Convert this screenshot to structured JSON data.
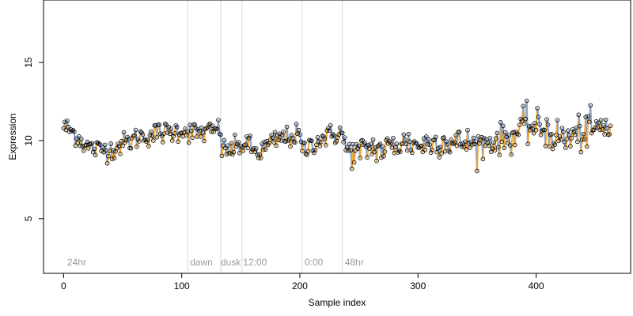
{
  "chart_data": {
    "type": "scatter",
    "title": "",
    "xlabel": "Sample index",
    "ylabel": "Expression",
    "xlim": [
      -17,
      480
    ],
    "ylim": [
      1.5,
      19
    ],
    "x_ticks": [
      0,
      100,
      200,
      300,
      400
    ],
    "y_ticks": [
      5,
      10,
      15
    ],
    "grid": false,
    "legend": "none",
    "colors": {
      "series_line_a": "#f5a623",
      "series_line_b": "#7b9fd8",
      "point_edge": "#000000",
      "vline": "#d9d9d9",
      "annotation": "#9a9a9a"
    },
    "vertical_lines": [
      105,
      133,
      151,
      202,
      236
    ],
    "annotations": [
      {
        "label": "24hr",
        "x": 3,
        "y": 2
      },
      {
        "label": "dawn",
        "x": 107,
        "y": 2
      },
      {
        "label": "dusk",
        "x": 133,
        "y": 2
      },
      {
        "label": "12:00",
        "x": 152,
        "y": 2
      },
      {
        "label": "0:00",
        "x": 204,
        "y": 2
      },
      {
        "label": "48hr",
        "x": 238,
        "y": 2
      }
    ],
    "anchors": [
      [
        0,
        10.9
      ],
      [
        5,
        10.7
      ],
      [
        10,
        10.4
      ],
      [
        15,
        10.0
      ],
      [
        20,
        9.6
      ],
      [
        25,
        9.5
      ],
      [
        30,
        9.4
      ],
      [
        35,
        9.5
      ],
      [
        40,
        9.4
      ],
      [
        45,
        9.6
      ],
      [
        50,
        9.8
      ],
      [
        55,
        9.9
      ],
      [
        60,
        10.1
      ],
      [
        65,
        10.3
      ],
      [
        70,
        10.3
      ],
      [
        75,
        10.4
      ],
      [
        80,
        10.5
      ],
      [
        85,
        10.5
      ],
      [
        90,
        10.5
      ],
      [
        95,
        10.6
      ],
      [
        100,
        10.7
      ],
      [
        105,
        10.6
      ],
      [
        110,
        10.5
      ],
      [
        115,
        10.5
      ],
      [
        120,
        10.5
      ],
      [
        125,
        10.6
      ],
      [
        130,
        10.7
      ],
      [
        133,
        10.8
      ],
      [
        134,
        9.4
      ],
      [
        140,
        9.4
      ],
      [
        145,
        9.5
      ],
      [
        150,
        9.7
      ],
      [
        155,
        9.8
      ],
      [
        160,
        9.4
      ],
      [
        165,
        9.2
      ],
      [
        170,
        9.5
      ],
      [
        175,
        9.8
      ],
      [
        180,
        10.0
      ],
      [
        185,
        10.2
      ],
      [
        190,
        10.2
      ],
      [
        195,
        10.3
      ],
      [
        200,
        10.3
      ],
      [
        202,
        9.3
      ],
      [
        206,
        9.5
      ],
      [
        210,
        9.8
      ],
      [
        215,
        10.0
      ],
      [
        220,
        10.2
      ],
      [
        225,
        10.3
      ],
      [
        230,
        10.4
      ],
      [
        235,
        10.6
      ],
      [
        238,
        9.6
      ],
      [
        242,
        9.3
      ],
      [
        250,
        9.2
      ],
      [
        260,
        9.6
      ],
      [
        270,
        9.4
      ],
      [
        280,
        9.7
      ],
      [
        290,
        9.9
      ],
      [
        300,
        9.7
      ],
      [
        310,
        9.8
      ],
      [
        320,
        10.0
      ],
      [
        330,
        9.8
      ],
      [
        340,
        9.9
      ],
      [
        350,
        9.7
      ],
      [
        360,
        9.9
      ],
      [
        370,
        10.1
      ],
      [
        380,
        10.2
      ],
      [
        385,
        10.6
      ],
      [
        390,
        10.9
      ],
      [
        395,
        11.0
      ],
      [
        400,
        10.7
      ],
      [
        405,
        10.9
      ],
      [
        410,
        10.6
      ],
      [
        415,
        10.3
      ],
      [
        420,
        10.2
      ],
      [
        425,
        10.1
      ],
      [
        430,
        10.2
      ],
      [
        435,
        10.4
      ],
      [
        440,
        10.5
      ],
      [
        445,
        10.6
      ],
      [
        450,
        10.7
      ],
      [
        455,
        10.8
      ],
      [
        460,
        10.9
      ],
      [
        463,
        10.9
      ]
    ],
    "n_points": 464,
    "point_noise_sd": 0.35
  }
}
